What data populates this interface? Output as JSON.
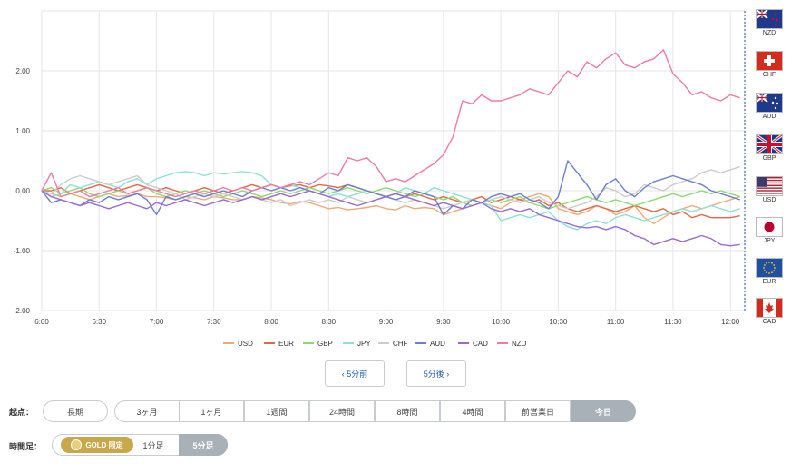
{
  "chart_data": {
    "type": "line",
    "x": [
      "6:00",
      "6:05",
      "6:10",
      "6:15",
      "6:20",
      "6:25",
      "6:30",
      "6:35",
      "6:40",
      "6:45",
      "6:50",
      "6:55",
      "7:00",
      "7:05",
      "7:10",
      "7:15",
      "7:20",
      "7:25",
      "7:30",
      "7:35",
      "7:40",
      "7:45",
      "7:50",
      "7:55",
      "8:00",
      "8:05",
      "8:10",
      "8:15",
      "8:20",
      "8:25",
      "8:30",
      "8:35",
      "8:40",
      "8:45",
      "8:50",
      "8:55",
      "9:00",
      "9:05",
      "9:10",
      "9:15",
      "9:20",
      "9:25",
      "9:30",
      "9:35",
      "9:40",
      "9:45",
      "9:50",
      "9:55",
      "10:00",
      "10:05",
      "10:10",
      "10:15",
      "10:20",
      "10:25",
      "10:30",
      "10:35",
      "10:40",
      "10:45",
      "10:50",
      "10:55",
      "11:00",
      "11:05",
      "11:10",
      "11:15",
      "11:20",
      "11:25",
      "11:30",
      "11:35",
      "11:40",
      "11:45",
      "11:50",
      "11:55",
      "12:00",
      "12:05"
    ],
    "x_tick_labels": [
      "6:00",
      "6:30",
      "7:00",
      "7:30",
      "8:00",
      "8:30",
      "9:00",
      "9:30",
      "10:00",
      "10:30",
      "11:00",
      "11:30",
      "12:00"
    ],
    "y_tick_labels": [
      "2.00",
      "1.00",
      "0.00",
      "-1.00",
      "-2.00"
    ],
    "ylim": [
      -2.0,
      3.0
    ],
    "grid": true,
    "legend_position": "bottom",
    "series": [
      {
        "name": "USD",
        "color": "#f0a978",
        "values": [
          0,
          -0.05,
          -0.1,
          -0.05,
          -0.1,
          -0.15,
          -0.1,
          -0.05,
          -0.1,
          -0.08,
          -0.05,
          -0.1,
          -0.1,
          -0.12,
          -0.15,
          -0.1,
          -0.12,
          -0.15,
          -0.1,
          -0.12,
          -0.15,
          -0.15,
          -0.1,
          -0.12,
          -0.15,
          -0.2,
          -0.22,
          -0.18,
          -0.2,
          -0.25,
          -0.3,
          -0.28,
          -0.32,
          -0.3,
          -0.28,
          -0.25,
          -0.3,
          -0.32,
          -0.25,
          -0.3,
          -0.28,
          -0.3,
          -0.4,
          -0.35,
          -0.3,
          -0.25,
          -0.2,
          -0.25,
          -0.3,
          -0.2,
          -0.15,
          -0.1,
          -0.05,
          -0.1,
          -0.3,
          -0.35,
          -0.4,
          -0.35,
          -0.25,
          -0.3,
          -0.4,
          -0.35,
          -0.25,
          -0.45,
          -0.55,
          -0.45,
          -0.35,
          -0.3,
          -0.25,
          -0.3,
          -0.25,
          -0.2,
          -0.15,
          -0.1
        ]
      },
      {
        "name": "EUR",
        "color": "#e06a45",
        "values": [
          0,
          0,
          0.05,
          -0.05,
          0,
          0.05,
          0.1,
          0.05,
          0,
          0.05,
          0.1,
          0.05,
          0,
          0.05,
          0,
          -0.05,
          0,
          0.05,
          0,
          -0.05,
          0,
          0.05,
          0.1,
          0.05,
          0.1,
          0.05,
          0.08,
          0.1,
          0.05,
          0.1,
          0.08,
          0.05,
          0.1,
          0.05,
          0,
          -0.05,
          -0.1,
          -0.05,
          -0.1,
          -0.05,
          -0.1,
          -0.15,
          -0.1,
          -0.15,
          -0.2,
          -0.15,
          -0.1,
          -0.2,
          -0.15,
          -0.1,
          -0.15,
          -0.2,
          -0.15,
          -0.25,
          -0.2,
          -0.3,
          -0.35,
          -0.3,
          -0.25,
          -0.3,
          -0.35,
          -0.3,
          -0.25,
          -0.3,
          -0.35,
          -0.3,
          -0.4,
          -0.35,
          -0.45,
          -0.4,
          -0.45,
          -0.45,
          -0.45,
          -0.42
        ]
      },
      {
        "name": "GBP",
        "color": "#8fd870",
        "values": [
          0,
          0.05,
          -0.05,
          0,
          0.05,
          -0.05,
          -0.1,
          -0.05,
          0,
          -0.05,
          0,
          0.05,
          -0.05,
          -0.1,
          -0.05,
          0,
          -0.05,
          0,
          -0.05,
          -0.1,
          -0.05,
          0,
          -0.05,
          -0.1,
          -0.05,
          0,
          -0.05,
          0,
          0.05,
          0,
          -0.05,
          0,
          0.05,
          0,
          -0.05,
          0,
          0.05,
          0,
          -0.05,
          -0.1,
          -0.05,
          -0.1,
          -0.15,
          -0.1,
          -0.2,
          -0.25,
          -0.2,
          -0.15,
          -0.2,
          -0.15,
          -0.1,
          -0.2,
          -0.25,
          -0.3,
          -0.25,
          -0.2,
          -0.15,
          -0.1,
          -0.15,
          -0.2,
          -0.15,
          -0.2,
          -0.25,
          -0.2,
          -0.15,
          -0.1,
          -0.05,
          -0.1,
          -0.05,
          0,
          -0.05,
          0,
          -0.05,
          -0.1
        ]
      },
      {
        "name": "JPY",
        "color": "#8de0d5",
        "values": [
          0,
          -0.1,
          -0.05,
          0.1,
          0.05,
          0.1,
          0.15,
          0.1,
          0.05,
          0.15,
          0.2,
          0.1,
          0.2,
          0.25,
          0.3,
          0.32,
          0.3,
          0.25,
          0.3,
          0.28,
          0.3,
          0.32,
          0.3,
          0.25,
          0.1,
          0.05,
          0.1,
          0.05,
          0,
          -0.05,
          -0.1,
          -0.05,
          -0.1,
          -0.05,
          0,
          -0.05,
          -0.1,
          -0.05,
          0.05,
          0,
          -0.05,
          0.05,
          0,
          -0.05,
          -0.1,
          -0.15,
          -0.2,
          -0.25,
          -0.5,
          -0.45,
          -0.4,
          -0.45,
          -0.4,
          -0.35,
          -0.5,
          -0.6,
          -0.65,
          -0.55,
          -0.5,
          -0.55,
          -0.45,
          -0.4,
          -0.45,
          -0.5,
          -0.45,
          -0.4,
          -0.35,
          -0.3,
          -0.35,
          -0.3,
          -0.25,
          -0.3,
          -0.35,
          -0.3
        ]
      },
      {
        "name": "CHF",
        "color": "#cccccc",
        "values": [
          0,
          -0.05,
          0.1,
          0.2,
          0.25,
          0.2,
          0.15,
          0.1,
          0.15,
          0.2,
          0.25,
          0.1,
          0.05,
          0,
          -0.05,
          -0.15,
          -0.1,
          -0.05,
          -0.1,
          -0.05,
          -0.1,
          -0.15,
          -0.1,
          -0.15,
          -0.2,
          -0.15,
          -0.25,
          -0.2,
          -0.15,
          -0.2,
          -0.15,
          -0.2,
          -0.1,
          -0.15,
          -0.2,
          -0.15,
          -0.1,
          -0.15,
          -0.2,
          -0.15,
          -0.2,
          -0.25,
          -0.3,
          -0.25,
          -0.2,
          -0.15,
          -0.2,
          -0.15,
          -0.1,
          -0.15,
          -0.2,
          -0.15,
          -0.1,
          -0.2,
          -0.25,
          -0.3,
          -0.25,
          -0.2,
          -0.1,
          0.05,
          0,
          -0.1,
          -0.05,
          0.1,
          0.05,
          0,
          0.1,
          0.15,
          0.2,
          0.3,
          0.35,
          0.3,
          0.35,
          0.4
        ]
      },
      {
        "name": "AUD",
        "color": "#6b80c8",
        "values": [
          0,
          -0.2,
          -0.15,
          -0.2,
          -0.25,
          -0.15,
          -0.2,
          -0.1,
          -0.15,
          -0.1,
          -0.05,
          -0.15,
          -0.4,
          -0.1,
          -0.15,
          -0.1,
          -0.05,
          -0.1,
          -0.05,
          0,
          -0.05,
          -0.1,
          0,
          0.05,
          0,
          0.05,
          0,
          0.05,
          0,
          -0.05,
          0.05,
          0,
          0.1,
          0.05,
          0,
          -0.05,
          -0.1,
          -0.15,
          -0.1,
          0,
          -0.05,
          -0.1,
          -0.4,
          -0.25,
          -0.3,
          -0.15,
          -0.2,
          -0.1,
          -0.05,
          -0.1,
          -0.05,
          -0.15,
          -0.2,
          -0.3,
          -0.1,
          0.5,
          0.3,
          0.1,
          -0.15,
          0.1,
          0.2,
          0,
          -0.1,
          0.05,
          0.15,
          0.2,
          0.25,
          0.2,
          0.15,
          0.1,
          0,
          -0.05,
          -0.1,
          -0.15
        ]
      },
      {
        "name": "CAD",
        "color": "#9a6ad0",
        "values": [
          0,
          -0.1,
          -0.15,
          -0.2,
          -0.25,
          -0.2,
          -0.25,
          -0.3,
          -0.25,
          -0.2,
          -0.25,
          -0.3,
          -0.2,
          -0.25,
          -0.2,
          -0.15,
          -0.2,
          -0.25,
          -0.2,
          -0.15,
          -0.2,
          -0.15,
          -0.1,
          -0.15,
          -0.1,
          -0.05,
          -0.1,
          -0.05,
          0,
          -0.05,
          -0.1,
          -0.15,
          -0.2,
          -0.25,
          -0.2,
          -0.15,
          -0.1,
          -0.05,
          -0.1,
          -0.15,
          -0.2,
          -0.25,
          -0.2,
          -0.25,
          -0.3,
          -0.25,
          -0.2,
          -0.3,
          -0.35,
          -0.3,
          -0.35,
          -0.3,
          -0.4,
          -0.45,
          -0.5,
          -0.55,
          -0.6,
          -0.62,
          -0.6,
          -0.65,
          -0.6,
          -0.65,
          -0.75,
          -0.8,
          -0.9,
          -0.85,
          -0.8,
          -0.85,
          -0.8,
          -0.75,
          -0.8,
          -0.9,
          -0.92,
          -0.9
        ]
      },
      {
        "name": "NZD",
        "color": "#ee7aa8",
        "values": [
          0,
          0.3,
          -0.1,
          -0.05,
          0,
          -0.1,
          -0.05,
          0,
          0.05,
          -0.05,
          0,
          0.05,
          0,
          -0.05,
          -0.1,
          -0.05,
          0,
          -0.05,
          0,
          0.05,
          0,
          0.05,
          0,
          0.05,
          0.1,
          0.05,
          0.1,
          0.15,
          0.1,
          0.2,
          0.3,
          0.25,
          0.55,
          0.5,
          0.55,
          0.4,
          0.15,
          0.2,
          0.15,
          0.25,
          0.35,
          0.45,
          0.6,
          0.9,
          1.5,
          1.45,
          1.6,
          1.5,
          1.5,
          1.55,
          1.6,
          1.7,
          1.65,
          1.6,
          1.8,
          2.0,
          1.9,
          2.15,
          2.05,
          2.2,
          2.3,
          2.1,
          2.05,
          2.15,
          2.2,
          2.35,
          1.95,
          1.8,
          1.6,
          1.65,
          1.55,
          1.5,
          1.6,
          1.55
        ]
      }
    ]
  },
  "flags": [
    {
      "code": "NZD",
      "icon": "nz-flag-icon"
    },
    {
      "code": "CHF",
      "icon": "ch-flag-icon"
    },
    {
      "code": "AUD",
      "icon": "au-flag-icon"
    },
    {
      "code": "GBP",
      "icon": "uk-flag-icon"
    },
    {
      "code": "USD",
      "icon": "us-flag-icon"
    },
    {
      "code": "JPY",
      "icon": "jp-flag-icon"
    },
    {
      "code": "EUR",
      "icon": "eu-flag-icon"
    },
    {
      "code": "CAD",
      "icon": "ca-flag-icon"
    }
  ],
  "nav": {
    "prev": "‹ 5分前",
    "next": "5分後 ›"
  },
  "start": {
    "label": "起点：",
    "long": "長期",
    "options": [
      "3ヶ月",
      "1ヶ月",
      "1週間",
      "24時間",
      "8時間",
      "4時間",
      "前営業日",
      "今日"
    ],
    "active_index": 7
  },
  "timeframe": {
    "label": "時間足：",
    "gold": "GOLD 限定",
    "options": [
      "1分足",
      "5分足"
    ],
    "active_index": 1
  }
}
